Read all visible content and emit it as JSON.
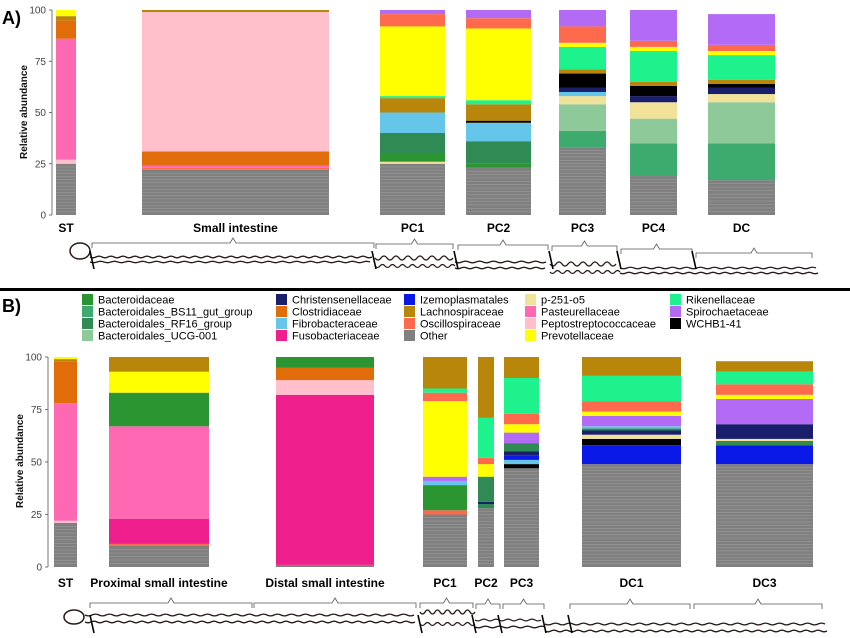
{
  "chart_data": [
    {
      "type": "bar",
      "stacked": true,
      "panel_label": "A)",
      "ylabel": "Relative abundance",
      "ylim": [
        0,
        100
      ],
      "yticks": [
        0,
        25,
        50,
        75,
        100
      ],
      "categories": [
        "ST",
        "Small intestine",
        "PC1",
        "PC2",
        "PC3",
        "PC4",
        "DC"
      ],
      "bars": [
        {
          "category": "ST",
          "segments": [
            {
              "taxon": "Other",
              "value": 25
            },
            {
              "taxon": "Peptostreptococcaceae",
              "value": 2
            },
            {
              "taxon": "Pasteurellaceae",
              "value": 59
            },
            {
              "taxon": "Clostridiaceae",
              "value": 9
            },
            {
              "taxon": "Lachnospiraceae",
              "value": 2
            },
            {
              "taxon": "Prevotellaceae",
              "value": 3
            }
          ]
        },
        {
          "category": "Small intestine",
          "segments": [
            {
              "taxon": "Other",
              "value": 22
            },
            {
              "taxon": "Oscillospiraceae",
              "value": 1
            },
            {
              "taxon": "Pasteurellaceae",
              "value": 1
            },
            {
              "taxon": "Clostridiaceae",
              "value": 7
            },
            {
              "taxon": "Peptostreptococcaceae",
              "value": 68
            },
            {
              "taxon": "Lachnospiraceae",
              "value": 1
            }
          ]
        },
        {
          "category": "PC1",
          "segments": [
            {
              "taxon": "Other",
              "value": 25
            },
            {
              "taxon": "p-251-o5",
              "value": 1
            },
            {
              "taxon": "Bacteroidaceae",
              "value": 4
            },
            {
              "taxon": "Bacteroidales_RF16_group",
              "value": 10
            },
            {
              "taxon": "Fibrobacteraceae",
              "value": 10
            },
            {
              "taxon": "Lachnospiraceae",
              "value": 7
            },
            {
              "taxon": "Rikenellaceae",
              "value": 1
            },
            {
              "taxon": "Prevotellaceae",
              "value": 34
            },
            {
              "taxon": "Oscillospiraceae",
              "value": 6
            },
            {
              "taxon": "Spirochaetaceae",
              "value": 2
            }
          ]
        },
        {
          "category": "PC2",
          "segments": [
            {
              "taxon": "Other",
              "value": 23
            },
            {
              "taxon": "Bacteroidaceae",
              "value": 2
            },
            {
              "taxon": "Bacteroidales_RF16_group",
              "value": 11
            },
            {
              "taxon": "Fibrobacteraceae",
              "value": 9
            },
            {
              "taxon": "WCHB1-41",
              "value": 1
            },
            {
              "taxon": "Lachnospiraceae",
              "value": 8
            },
            {
              "taxon": "Rikenellaceae",
              "value": 2
            },
            {
              "taxon": "Prevotellaceae",
              "value": 35
            },
            {
              "taxon": "Oscillospiraceae",
              "value": 5
            },
            {
              "taxon": "Spirochaetaceae",
              "value": 4
            }
          ]
        },
        {
          "category": "PC3",
          "segments": [
            {
              "taxon": "Other",
              "value": 33
            },
            {
              "taxon": "Bacteroidales_BS11_gut_group",
              "value": 8
            },
            {
              "taxon": "Bacteroidales_UCG-001",
              "value": 13
            },
            {
              "taxon": "p-251-o5",
              "value": 4
            },
            {
              "taxon": "Fibrobacteraceae",
              "value": 2
            },
            {
              "taxon": "Christensenellaceae",
              "value": 2
            },
            {
              "taxon": "WCHB1-41",
              "value": 7
            },
            {
              "taxon": "Lachnospiraceae",
              "value": 2
            },
            {
              "taxon": "Rikenellaceae",
              "value": 11
            },
            {
              "taxon": "Prevotellaceae",
              "value": 2
            },
            {
              "taxon": "Oscillospiraceae",
              "value": 8
            },
            {
              "taxon": "Spirochaetaceae",
              "value": 8
            }
          ]
        },
        {
          "category": "PC4",
          "segments": [
            {
              "taxon": "Other",
              "value": 19
            },
            {
              "taxon": "Bacteroidales_BS11_gut_group",
              "value": 16
            },
            {
              "taxon": "Bacteroidales_UCG-001",
              "value": 12
            },
            {
              "taxon": "p-251-o5",
              "value": 8
            },
            {
              "taxon": "Christensenellaceae",
              "value": 3
            },
            {
              "taxon": "WCHB1-41",
              "value": 5
            },
            {
              "taxon": "Lachnospiraceae",
              "value": 2
            },
            {
              "taxon": "Rikenellaceae",
              "value": 15
            },
            {
              "taxon": "Prevotellaceae",
              "value": 2
            },
            {
              "taxon": "Oscillospiraceae",
              "value": 3
            },
            {
              "taxon": "Spirochaetaceae",
              "value": 15
            }
          ]
        },
        {
          "category": "DC",
          "segments": [
            {
              "taxon": "Other",
              "value": 17
            },
            {
              "taxon": "Bacteroidales_BS11_gut_group",
              "value": 18
            },
            {
              "taxon": "Bacteroidales_UCG-001",
              "value": 20
            },
            {
              "taxon": "p-251-o5",
              "value": 4
            },
            {
              "taxon": "Christensenellaceae",
              "value": 3
            },
            {
              "taxon": "WCHB1-41",
              "value": 2
            },
            {
              "taxon": "Lachnospiraceae",
              "value": 2
            },
            {
              "taxon": "Rikenellaceae",
              "value": 12
            },
            {
              "taxon": "Prevotellaceae",
              "value": 2
            },
            {
              "taxon": "Oscillospiraceae",
              "value": 3
            },
            {
              "taxon": "Spirochaetaceae",
              "value": 15
            }
          ]
        }
      ]
    },
    {
      "type": "bar",
      "stacked": true,
      "panel_label": "B)",
      "ylabel": "Relative abundance",
      "ylim": [
        0,
        100
      ],
      "yticks": [
        0,
        25,
        50,
        75,
        100
      ],
      "categories": [
        "ST",
        "Proximal small intestine",
        "Distal small intestine",
        "PC1",
        "PC2",
        "PC3",
        "DC1",
        "DC3"
      ],
      "bars": [
        {
          "category": "ST",
          "segments": [
            {
              "taxon": "Other",
              "value": 21
            },
            {
              "taxon": "Peptostreptococcaceae",
              "value": 1
            },
            {
              "taxon": "Pasteurellaceae",
              "value": 56
            },
            {
              "taxon": "Clostridiaceae",
              "value": 20
            },
            {
              "taxon": "Lachnospiraceae",
              "value": 1
            },
            {
              "taxon": "Prevotellaceae",
              "value": 1
            }
          ]
        },
        {
          "category": "Proximal small intestine",
          "segments": [
            {
              "taxon": "Other",
              "value": 10
            },
            {
              "taxon": "Oscillospiraceae",
              "value": 1
            },
            {
              "taxon": "Fusobacteriaceae",
              "value": 12
            },
            {
              "taxon": "Pasteurellaceae",
              "value": 44
            },
            {
              "taxon": "Bacteroidaceae",
              "value": 16
            },
            {
              "taxon": "Prevotellaceae",
              "value": 10
            },
            {
              "taxon": "Lachnospiraceae",
              "value": 7
            }
          ]
        },
        {
          "category": "Distal small intestine",
          "segments": [
            {
              "taxon": "Other",
              "value": 1
            },
            {
              "taxon": "Fusobacteriaceae",
              "value": 81
            },
            {
              "taxon": "Peptostreptococcaceae",
              "value": 7
            },
            {
              "taxon": "Clostridiaceae",
              "value": 6
            },
            {
              "taxon": "Bacteroidaceae",
              "value": 5
            }
          ]
        },
        {
          "category": "PC1",
          "segments": [
            {
              "taxon": "Other",
              "value": 25
            },
            {
              "taxon": "Oscillospiraceae",
              "value": 2
            },
            {
              "taxon": "Bacteroidaceae",
              "value": 12
            },
            {
              "taxon": "Fibrobacteraceae",
              "value": 2
            },
            {
              "taxon": "Spirochaetaceae",
              "value": 2
            },
            {
              "taxon": "Prevotellaceae",
              "value": 36
            },
            {
              "taxon": "Oscillospiraceae",
              "value": 4
            },
            {
              "taxon": "Rikenellaceae",
              "value": 2
            },
            {
              "taxon": "Lachnospiraceae",
              "value": 15
            }
          ]
        },
        {
          "category": "PC2",
          "segments": [
            {
              "taxon": "Other",
              "value": 28
            },
            {
              "taxon": "Bacteroidales_RF16_group",
              "value": 2
            },
            {
              "taxon": "Christensenellaceae",
              "value": 1
            },
            {
              "taxon": "Bacteroidales_RF16_group",
              "value": 12
            },
            {
              "taxon": "Prevotellaceae",
              "value": 6
            },
            {
              "taxon": "Oscillospiraceae",
              "value": 3
            },
            {
              "taxon": "Rikenellaceae",
              "value": 19
            },
            {
              "taxon": "Lachnospiraceae",
              "value": 29
            }
          ]
        },
        {
          "category": "PC3",
          "segments": [
            {
              "taxon": "Other",
              "value": 47
            },
            {
              "taxon": "WCHB1-41",
              "value": 2
            },
            {
              "taxon": "Fibrobacteraceae",
              "value": 2
            },
            {
              "taxon": "Izemoplasmatales",
              "value": 2
            },
            {
              "taxon": "Christensenellaceae",
              "value": 2
            },
            {
              "taxon": "Bacteroidales_RF16_group",
              "value": 4
            },
            {
              "taxon": "Spirochaetaceae",
              "value": 5
            },
            {
              "taxon": "Prevotellaceae",
              "value": 4
            },
            {
              "taxon": "Oscillospiraceae",
              "value": 5
            },
            {
              "taxon": "Rikenellaceae",
              "value": 17
            },
            {
              "taxon": "Lachnospiraceae",
              "value": 10
            }
          ]
        },
        {
          "category": "DC1",
          "segments": [
            {
              "taxon": "Other",
              "value": 49
            },
            {
              "taxon": "Izemoplasmatales",
              "value": 9
            },
            {
              "taxon": "WCHB1-41",
              "value": 3
            },
            {
              "taxon": "p-251-o5",
              "value": 2
            },
            {
              "taxon": "Christensenellaceae",
              "value": 2
            },
            {
              "taxon": "Bacteroidales_RF16_group",
              "value": 1
            },
            {
              "taxon": "Fibrobacteraceae",
              "value": 1
            },
            {
              "taxon": "Spirochaetaceae",
              "value": 5
            },
            {
              "taxon": "Prevotellaceae",
              "value": 2
            },
            {
              "taxon": "Oscillospiraceae",
              "value": 5
            },
            {
              "taxon": "Rikenellaceae",
              "value": 12
            },
            {
              "taxon": "Lachnospiraceae",
              "value": 9
            }
          ]
        },
        {
          "category": "DC3",
          "segments": [
            {
              "taxon": "Other",
              "value": 49
            },
            {
              "taxon": "Izemoplasmatales",
              "value": 9
            },
            {
              "taxon": "Bacteroidales_RF16_group",
              "value": 2
            },
            {
              "taxon": "p-251-o5",
              "value": 1
            },
            {
              "taxon": "Christensenellaceae",
              "value": 7
            },
            {
              "taxon": "Spirochaetaceae",
              "value": 12
            },
            {
              "taxon": "Prevotellaceae",
              "value": 2
            },
            {
              "taxon": "Oscillospiraceae",
              "value": 5
            },
            {
              "taxon": "Rikenellaceae",
              "value": 6
            },
            {
              "taxon": "Lachnospiraceae",
              "value": 5
            }
          ]
        }
      ]
    }
  ],
  "legend": [
    {
      "name": "Bacteroidaceae",
      "color": "#2b9532"
    },
    {
      "name": "Bacteroidales_BS11_gut_group",
      "color": "#3daa6e"
    },
    {
      "name": "Bacteroidales_RF16_group",
      "color": "#2f8a54"
    },
    {
      "name": "Bacteroidales_UCG-001",
      "color": "#8ec99a"
    },
    {
      "name": "Christensenellaceae",
      "color": "#1a1f6b"
    },
    {
      "name": "Clostridiaceae",
      "color": "#e06c0a"
    },
    {
      "name": "Fibrobacteraceae",
      "color": "#66c6ea"
    },
    {
      "name": "Fusobacteriaceae",
      "color": "#ee1e8c"
    },
    {
      "name": "Izemoplasmatales",
      "color": "#0a18e8"
    },
    {
      "name": "Lachnospiraceae",
      "color": "#b8860b"
    },
    {
      "name": "Oscillospiraceae",
      "color": "#ff6a4d"
    },
    {
      "name": "Other",
      "color": "#808080"
    },
    {
      "name": "p-251-o5",
      "color": "#f0e298"
    },
    {
      "name": "Pasteurellaceae",
      "color": "#ff69b4"
    },
    {
      "name": "Peptostreptococcaceae",
      "color": "#ffc0cb"
    },
    {
      "name": "Prevotellaceae",
      "color": "#ffff00"
    },
    {
      "name": "Rikenellaceae",
      "color": "#1df28c"
    },
    {
      "name": "Spirochaetaceae",
      "color": "#b36bf5"
    },
    {
      "name": "WCHB1-41",
      "color": "#000000"
    }
  ]
}
